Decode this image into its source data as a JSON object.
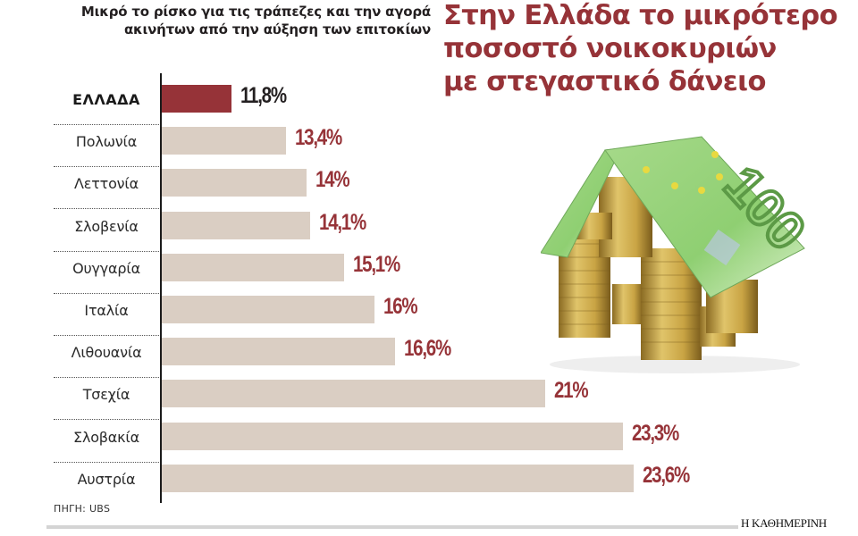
{
  "subtitle": "Μικρό το ρίσκο για τις τράπεζες και την αγορά ακινήτων από την αύξηση των επιτοκίων",
  "headline": {
    "line1": "Στην Ελλάδα το μικρότερο",
    "line2": "ποσοστό νοικοκυριών",
    "line3": "με στεγαστικό δάνειο"
  },
  "colors": {
    "highlight": "#963338",
    "bar": "#dacec3",
    "value_text": "#963338",
    "axis": "#1a1a1a"
  },
  "rows": [
    {
      "label": "ΕΛΛΑΔΑ",
      "value_label": "11,8%",
      "value": 11.8,
      "highlight": true
    },
    {
      "label": "Πολωνία",
      "value_label": "13,4%",
      "value": 13.4
    },
    {
      "label": "Λεττονία",
      "value_label": "14%",
      "value": 14.0
    },
    {
      "label": "Σλοβενία",
      "value_label": "14,1%",
      "value": 14.1
    },
    {
      "label": "Ουγγαρία",
      "value_label": "15,1%",
      "value": 15.1
    },
    {
      "label": "Ιταλία",
      "value_label": "16%",
      "value": 16.0
    },
    {
      "label": "Λιθουανία",
      "value_label": "16,6%",
      "value": 16.6
    },
    {
      "label": "Τσεχία",
      "value_label": "21%",
      "value": 21.0
    },
    {
      "label": "Σλοβακία",
      "value_label": "23,3%",
      "value": 23.3
    },
    {
      "label": "Αυστρία",
      "value_label": "23,6%",
      "value": 23.6
    }
  ],
  "source": "ΠΗΓΗ: UBS",
  "brand": "Η ΚΑΘΗΜΕΡΙΝΗ",
  "illustration": "house-of-euro-coins-and-100-euro-banknote-roof",
  "chart_data": {
    "type": "bar",
    "orientation": "horizontal",
    "title": "Στην Ελλάδα το μικρότερο ποσοστό νοικοκυριών με στεγαστικό δάνειο",
    "subtitle": "Μικρό το ρίσκο για τις τράπεζες και την αγορά ακινήτων από την αύξηση των επιτοκίων",
    "categories": [
      "ΕΛΛΑΔΑ",
      "Πολωνία",
      "Λεττονία",
      "Σλοβενία",
      "Ουγγαρία",
      "Ιταλία",
      "Λιθουανία",
      "Τσεχία",
      "Σλοβακία",
      "Αυστρία"
    ],
    "values": [
      11.8,
      13.4,
      14.0,
      14.1,
      15.1,
      16.0,
      16.6,
      21.0,
      23.3,
      23.6
    ],
    "unit": "%",
    "highlighted_category": "ΕΛΛΑΔΑ",
    "xlabel": "",
    "ylabel": "",
    "grid": false,
    "legend": null,
    "source": "ΠΗΓΗ: UBS"
  }
}
